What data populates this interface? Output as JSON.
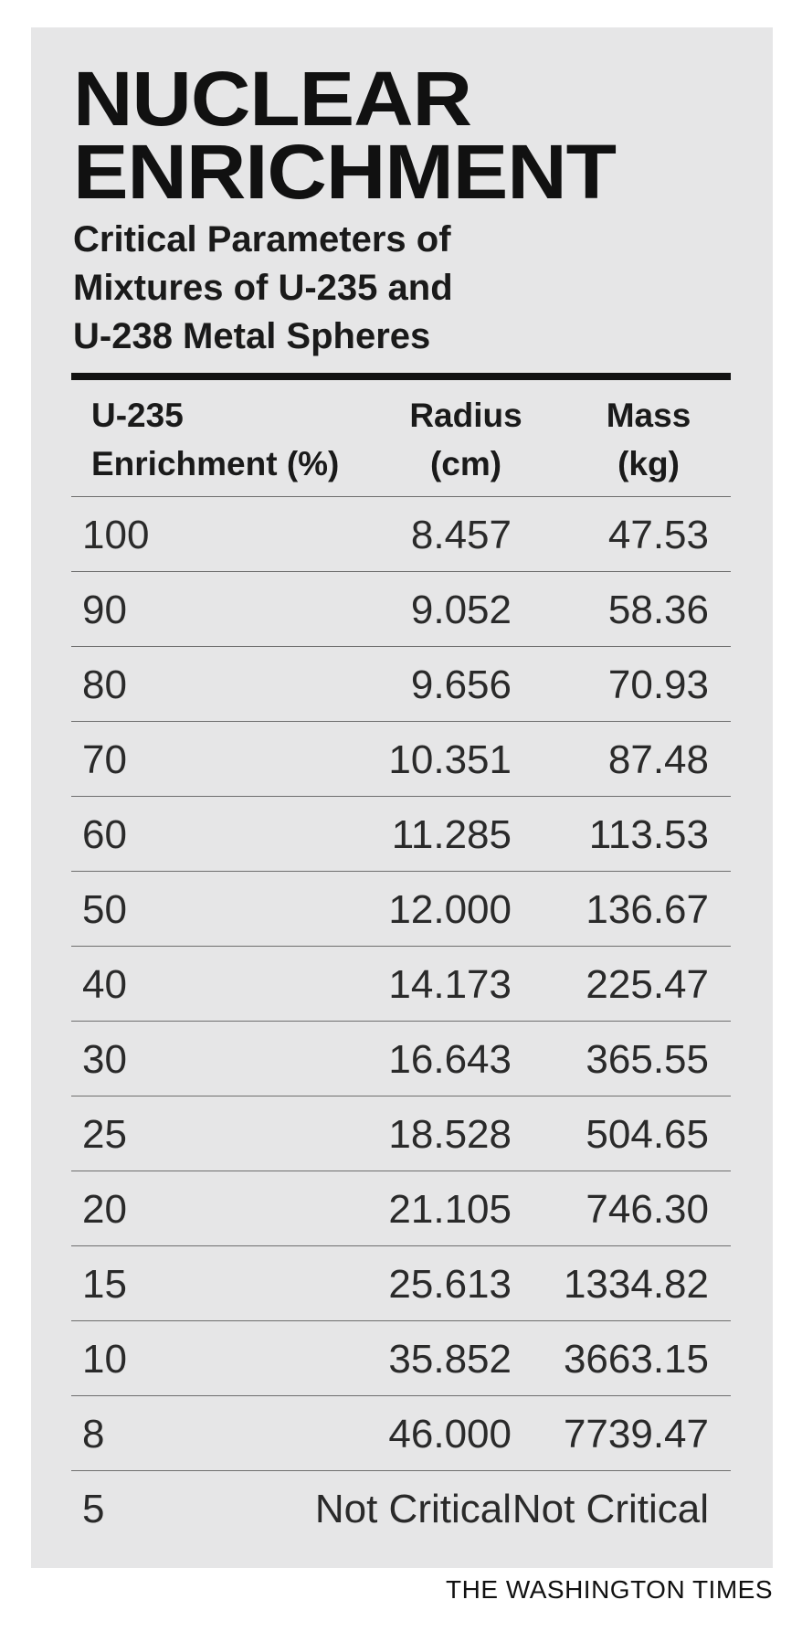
{
  "title_lines": [
    "NUCLEAR",
    "ENRICHMENT"
  ],
  "subtitle_lines": [
    "Critical Parameters of",
    "Mixtures of U-235 and",
    "U-238 Metal Spheres"
  ],
  "columns": {
    "enrichment": [
      "U-235",
      "Enrichment (%)"
    ],
    "radius": [
      "Radius",
      "(cm)"
    ],
    "mass": [
      "Mass",
      "(kg)"
    ]
  },
  "credit": "THE WASHINGTON TIMES",
  "colors": {
    "panel_background": "#e6e6e7",
    "text": "#111111",
    "rule": "#6e6e6e"
  },
  "chart_data": {
    "type": "table",
    "title": "NUCLEAR ENRICHMENT",
    "subtitle": "Critical Parameters of Mixtures of U-235 and U-238 Metal Spheres",
    "headers": [
      "U-235 Enrichment (%)",
      "Radius (cm)",
      "Mass (kg)"
    ],
    "rows": [
      [
        "100",
        "8.457",
        "47.53"
      ],
      [
        "90",
        "9.052",
        "58.36"
      ],
      [
        "80",
        "9.656",
        "70.93"
      ],
      [
        "70",
        "10.351",
        "87.48"
      ],
      [
        "60",
        "11.285",
        "113.53"
      ],
      [
        "50",
        "12.000",
        "136.67"
      ],
      [
        "40",
        "14.173",
        "225.47"
      ],
      [
        "30",
        "16.643",
        "365.55"
      ],
      [
        "25",
        "18.528",
        "504.65"
      ],
      [
        "20",
        "21.105",
        "746.30"
      ],
      [
        "15",
        "25.613",
        "1334.82"
      ],
      [
        "10",
        "35.852",
        "3663.15"
      ],
      [
        "8",
        "46.000",
        "7739.47"
      ],
      [
        "5",
        "Not Critical",
        "Not Critical"
      ]
    ]
  }
}
